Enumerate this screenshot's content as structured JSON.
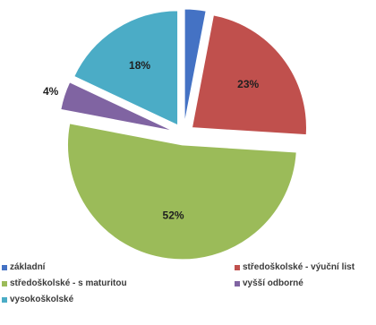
{
  "chart_data": {
    "type": "pie",
    "slices": [
      {
        "label": "základní",
        "value": 3,
        "value_label": "3%",
        "color": "#4472C4",
        "exploded": true
      },
      {
        "label": "středoškolské - výuční list",
        "value": 23,
        "value_label": "23%",
        "color": "#C0504D",
        "exploded": true
      },
      {
        "label": "středoškolské - s maturitou",
        "value": 52,
        "value_label": "52%",
        "color": "#9BBB59",
        "exploded": true
      },
      {
        "label": "vyšší odborné",
        "value": 4,
        "value_label": "4%",
        "color": "#8064A2",
        "exploded": true
      },
      {
        "label": "vysokoškolské",
        "value": 18,
        "value_label": "18%",
        "color": "#4BACC6",
        "exploded": true
      }
    ],
    "legend_position": "bottom",
    "title": ""
  }
}
